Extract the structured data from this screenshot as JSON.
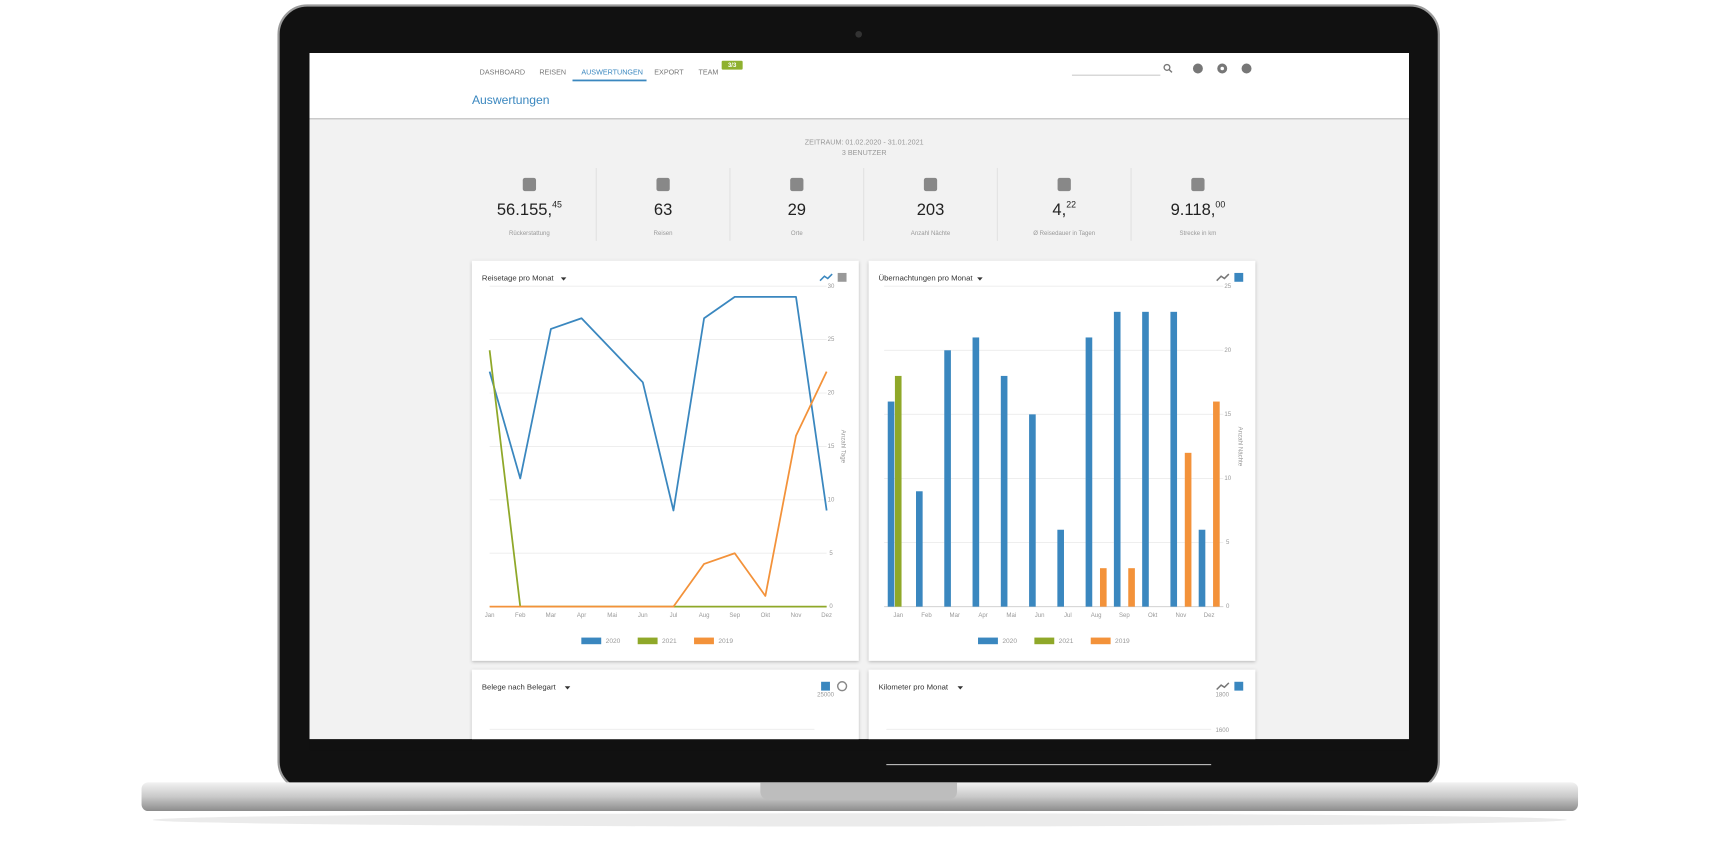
{
  "nav": {
    "items": [
      "DASHBOARD",
      "REISEN",
      "AUSWERTUNGEN",
      "EXPORT",
      "TEAM"
    ],
    "badge": "3/3"
  },
  "header": {
    "title": "Auswertungen"
  },
  "summary": {
    "period": "ZEITRAUM: 01.02.2020 - 31.01.2021",
    "users": "3 BENUTZER"
  },
  "kpis": [
    {
      "value": "56.155,",
      "decimals": "45",
      "label": "Rückerstattung"
    },
    {
      "value": "63",
      "label": "Reisen"
    },
    {
      "value": "29",
      "label": "Orte"
    },
    {
      "value": "203",
      "label": "Anzahl Nächte"
    },
    {
      "value": "4,",
      "decimals": "22",
      "label": "Ø Reisedauer in Tagen"
    },
    {
      "value": "9.118,",
      "decimals": "00",
      "label": "Strecke in km"
    }
  ],
  "chart_data": [
    {
      "type": "line",
      "title": "Reisetage pro Monat",
      "y_label": "Anzahl Tage",
      "categories": [
        "Jan",
        "Feb",
        "Mar",
        "Apr",
        "Mai",
        "Jun",
        "Jul",
        "Aug",
        "Sep",
        "Okt",
        "Nov",
        "Dez"
      ],
      "series": [
        {
          "name": "2020",
          "color": "#3a87bf",
          "values": [
            22,
            12,
            26,
            27,
            24,
            21,
            9,
            27,
            29,
            29,
            29,
            9
          ]
        },
        {
          "name": "2021",
          "color": "#8fa829",
          "values": [
            24,
            0,
            0,
            0,
            0,
            0,
            0,
            0,
            0,
            0,
            0,
            0
          ]
        },
        {
          "name": "2019",
          "color": "#f3923a",
          "values": [
            0,
            0,
            0,
            0,
            0,
            0,
            0,
            4,
            5,
            1,
            16,
            22
          ]
        }
      ],
      "ylim": [
        0,
        30
      ],
      "yticks": [
        0,
        5,
        10,
        15,
        20,
        25,
        30
      ],
      "grid": true
    },
    {
      "type": "bar",
      "title": "Übernachtungen pro Monat",
      "y_label": "Anzahl Nächte",
      "categories": [
        "Jan",
        "Feb",
        "Mar",
        "Apr",
        "Mai",
        "Jun",
        "Jul",
        "Aug",
        "Sep",
        "Okt",
        "Nov",
        "Dez"
      ],
      "series": [
        {
          "name": "2020",
          "color": "#3a87bf",
          "values": [
            16,
            9,
            20,
            21,
            18,
            15,
            6,
            21,
            23,
            23,
            23,
            6
          ]
        },
        {
          "name": "2021",
          "color": "#8fa829",
          "values": [
            18,
            0,
            0,
            0,
            0,
            0,
            0,
            0,
            0,
            0,
            0,
            0
          ]
        },
        {
          "name": "2019",
          "color": "#f3923a",
          "values": [
            0,
            0,
            0,
            0,
            0,
            0,
            0,
            3,
            3,
            0,
            12,
            16
          ]
        }
      ],
      "ylim": [
        0,
        25
      ],
      "yticks": [
        0,
        5,
        10,
        15,
        20,
        25
      ],
      "grid": true
    }
  ],
  "more_cards": [
    {
      "title": "Belege nach Belegart",
      "ticks": [
        25000
      ]
    },
    {
      "title": "Kilometer pro Monat",
      "ticks": [
        1800,
        1600
      ]
    }
  ]
}
